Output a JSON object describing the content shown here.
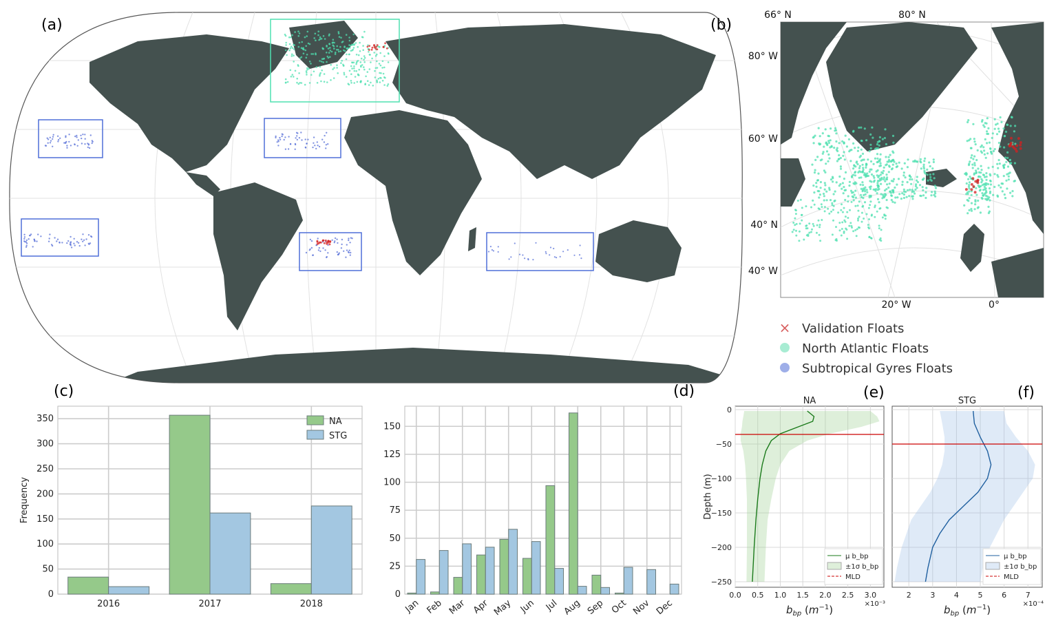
{
  "colors": {
    "land": "#44514f",
    "na": "#4fe0b0",
    "stg": "#5a72d8",
    "validation": "#d42020",
    "na_bar": "#95c98a",
    "stg_bar": "#a3c7e1",
    "grid": "#cccccc",
    "mld": "#cc0000",
    "na_line": "#1a7a1a",
    "stg_line": "#1f5f9f",
    "box_na": "#4fe0b0",
    "box_stg": "#4f6fd8"
  },
  "panels": {
    "a": "(a)",
    "b": "(b)",
    "c": "(c)",
    "d": "(d)",
    "e": "(e)",
    "f": "(f)"
  },
  "map_b": {
    "lat_labels": [
      "66° N",
      "80° N",
      "80° W",
      "60° W",
      "40° N",
      "40° W"
    ],
    "lon_labels": [
      "20° W",
      "0°"
    ]
  },
  "legend_main": [
    {
      "label": "Validation Floats",
      "marker": "x",
      "color": "#d86060"
    },
    {
      "label": "North Atlantic Floats",
      "marker": "dot",
      "color": "#a8ecd3"
    },
    {
      "label": "Subtropical Gyres Floats",
      "marker": "dot",
      "color": "#9eaee8"
    }
  ],
  "chart_data": [
    {
      "panel": "c",
      "type": "bar",
      "categories": [
        "2016",
        "2017",
        "2018"
      ],
      "series": [
        {
          "name": "NA",
          "values": [
            34,
            357,
            21
          ]
        },
        {
          "name": "STG",
          "values": [
            15,
            162,
            176
          ]
        }
      ],
      "ylabel": "Frequency",
      "yticks": [
        "0",
        "50",
        "100",
        "150",
        "200",
        "250",
        "300",
        "350"
      ],
      "ylim": [
        0,
        375
      ],
      "legend": "top-right",
      "grid": true
    },
    {
      "panel": "d",
      "type": "bar",
      "categories": [
        "Jan",
        "Feb",
        "Mar",
        "Apr",
        "May",
        "Jun",
        "Jul",
        "Aug",
        "Sep",
        "Oct",
        "Nov",
        "Dec"
      ],
      "series": [
        {
          "name": "NA",
          "values": [
            1,
            2,
            15,
            35,
            49,
            32,
            97,
            162,
            17,
            1,
            0,
            0
          ]
        },
        {
          "name": "STG",
          "values": [
            31,
            39,
            45,
            42,
            58,
            47,
            23,
            7,
            6,
            24,
            22,
            9
          ]
        }
      ],
      "yticks": [
        "0",
        "25",
        "50",
        "75",
        "100",
        "125",
        "150"
      ],
      "ylim": [
        0,
        168
      ],
      "grid": true
    },
    {
      "panel": "e",
      "type": "line",
      "title": "NA",
      "ylabel": "Depth (m)",
      "xlabel": "b_bp (m⁻¹)",
      "xticks": [
        "0.0",
        "0.5",
        "1.0",
        "1.5",
        "2.0",
        "2.5",
        "3.0"
      ],
      "xscale_label": "×10⁻³",
      "yticks": [
        "0",
        "−50",
        "−100",
        "−150",
        "−200",
        "−250"
      ],
      "xlim": [
        0,
        3.3
      ],
      "ylim": [
        -258,
        5
      ],
      "mld": -36,
      "mean": {
        "depth": [
          -2,
          -10,
          -17,
          -25,
          -35,
          -45,
          -60,
          -80,
          -100,
          -130,
          -160,
          -200,
          -250
        ],
        "value": [
          1.6,
          1.75,
          1.72,
          1.4,
          1.0,
          0.8,
          0.68,
          0.6,
          0.55,
          0.5,
          0.46,
          0.42,
          0.38
        ]
      },
      "band_upper": [
        3.0,
        3.15,
        3.2,
        2.8,
        2.1,
        1.6,
        1.2,
        1.0,
        0.9,
        0.8,
        0.72,
        0.68,
        0.65
      ],
      "band_lower": [
        0.2,
        0.18,
        0.16,
        0.15,
        0.12,
        0.12,
        0.18,
        0.22,
        0.24,
        0.26,
        0.26,
        0.26,
        0.25
      ],
      "legend": [
        "μ b_bp",
        "±1σ b_bp",
        "MLD"
      ],
      "grid": true
    },
    {
      "panel": "f",
      "type": "line",
      "title": "STG",
      "xlabel": "b_bp (m⁻¹)",
      "xticks": [
        "2",
        "3",
        "4",
        "5",
        "6",
        "7"
      ],
      "xscale_label": "×10⁻⁴",
      "xlim": [
        1.3,
        7.6
      ],
      "ylim": [
        -258,
        5
      ],
      "mld": -50,
      "mean": {
        "depth": [
          -2,
          -20,
          -40,
          -60,
          -80,
          -100,
          -120,
          -140,
          -160,
          -180,
          -200,
          -230,
          -250
        ],
        "value": [
          4.7,
          4.75,
          5.0,
          5.3,
          5.45,
          5.3,
          4.9,
          4.3,
          3.7,
          3.3,
          3.0,
          2.8,
          2.7
        ]
      },
      "band_upper": [
        6.0,
        6.1,
        6.5,
        7.0,
        7.3,
        7.2,
        6.8,
        6.4,
        6.0,
        5.7,
        5.4,
        5.1,
        5.0
      ],
      "band_lower": [
        3.3,
        3.4,
        3.5,
        3.5,
        3.4,
        3.2,
        2.9,
        2.5,
        2.1,
        1.9,
        1.7,
        1.5,
        1.4
      ],
      "legend": [
        "μ b_bp",
        "±1σ b_bp",
        "MLD"
      ],
      "grid": true
    }
  ]
}
